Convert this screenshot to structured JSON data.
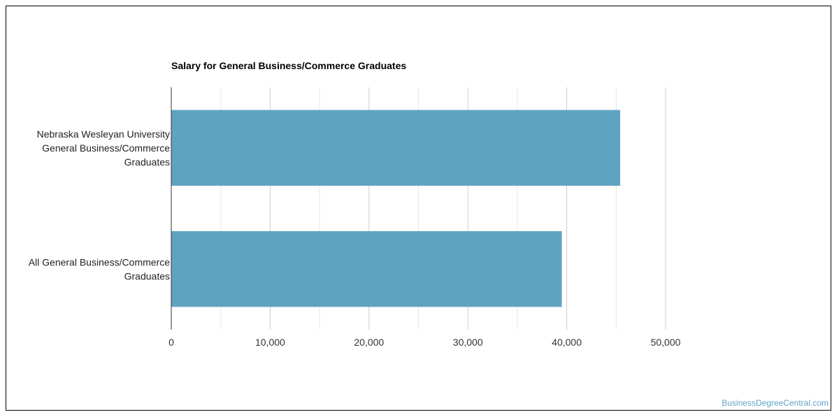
{
  "chart_data": {
    "type": "bar",
    "orientation": "horizontal",
    "title": "Salary for General Business/Commerce Graduates",
    "categories": [
      [
        "Nebraska Wesleyan University",
        "General Business/Commerce",
        "Graduates"
      ],
      [
        "All General Business/Commerce",
        "Graduates"
      ]
    ],
    "values": [
      45400,
      39500
    ],
    "xlim": [
      0,
      50000
    ],
    "xticks": [
      0,
      10000,
      20000,
      30000,
      40000,
      50000
    ],
    "tick_labels": [
      "0",
      "10,000",
      "20,000",
      "30,000",
      "40,000",
      "50,000"
    ],
    "xlabel": "",
    "ylabel": "",
    "grid": true,
    "legend": "none",
    "bar_color": "#5ea3c0"
  },
  "watermark": "BusinessDegreeCentral.com"
}
